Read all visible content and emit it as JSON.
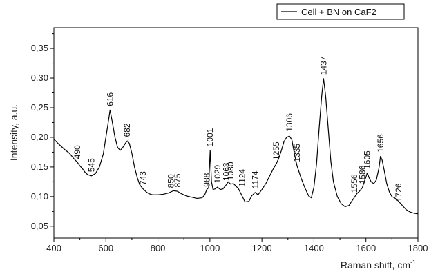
{
  "chart_data": {
    "type": "line",
    "xlabel": "Raman shift, cm",
    "xlabel_superscript": "-1",
    "ylabel": "Intensity, a.u.",
    "xlim": [
      400,
      1800
    ],
    "ylim": [
      0.03,
      0.385
    ],
    "x_ticks": [
      400,
      600,
      800,
      1000,
      1200,
      1400,
      1600,
      1800
    ],
    "x_tick_labels": [
      "400",
      "600",
      "800",
      "1000",
      "1200",
      "1400",
      "1600",
      "1800"
    ],
    "y_ticks": [
      0.05,
      0.1,
      0.15,
      0.2,
      0.25,
      0.3,
      0.35
    ],
    "y_tick_labels": [
      "0,05",
      "0,10",
      "0,15",
      "0,20",
      "0,25",
      "0,30",
      "0,35"
    ],
    "grid": false,
    "legend_position": "top-right",
    "series": [
      {
        "name": "Cell + BN on CaF2",
        "color": "#000000",
        "x": [
          400,
          420,
          440,
          460,
          475,
          490,
          500,
          510,
          520,
          530,
          545,
          560,
          575,
          590,
          600,
          610,
          616,
          625,
          635,
          645,
          655,
          665,
          675,
          682,
          690,
          700,
          710,
          720,
          730,
          743,
          755,
          765,
          780,
          800,
          820,
          840,
          850,
          860,
          875,
          890,
          910,
          930,
          950,
          970,
          980,
          988,
          995,
          1001,
          1006,
          1012,
          1020,
          1029,
          1040,
          1050,
          1063,
          1070,
          1080,
          1090,
          1100,
          1110,
          1124,
          1135,
          1150,
          1160,
          1174,
          1185,
          1200,
          1215,
          1230,
          1245,
          1255,
          1265,
          1275,
          1285,
          1295,
          1306,
          1315,
          1325,
          1335,
          1350,
          1365,
          1380,
          1390,
          1400,
          1410,
          1420,
          1430,
          1437,
          1445,
          1455,
          1465,
          1475,
          1490,
          1505,
          1520,
          1535,
          1545,
          1556,
          1565,
          1575,
          1586,
          1595,
          1600,
          1605,
          1612,
          1620,
          1630,
          1640,
          1650,
          1656,
          1662,
          1670,
          1680,
          1690,
          1700,
          1710,
          1726,
          1740,
          1755,
          1770,
          1785,
          1800
        ],
        "y": [
          0.197,
          0.188,
          0.18,
          0.173,
          0.165,
          0.158,
          0.152,
          0.147,
          0.141,
          0.137,
          0.135,
          0.139,
          0.15,
          0.172,
          0.2,
          0.228,
          0.246,
          0.225,
          0.2,
          0.183,
          0.178,
          0.183,
          0.19,
          0.194,
          0.19,
          0.173,
          0.15,
          0.133,
          0.12,
          0.113,
          0.108,
          0.105,
          0.103,
          0.103,
          0.104,
          0.106,
          0.108,
          0.11,
          0.109,
          0.105,
          0.101,
          0.099,
          0.097,
          0.098,
          0.103,
          0.112,
          0.115,
          0.178,
          0.125,
          0.112,
          0.113,
          0.116,
          0.112,
          0.113,
          0.12,
          0.125,
          0.121,
          0.122,
          0.118,
          0.113,
          0.101,
          0.091,
          0.092,
          0.101,
          0.107,
          0.103,
          0.112,
          0.122,
          0.135,
          0.148,
          0.155,
          0.165,
          0.178,
          0.193,
          0.2,
          0.202,
          0.196,
          0.172,
          0.152,
          0.132,
          0.115,
          0.101,
          0.098,
          0.116,
          0.155,
          0.215,
          0.27,
          0.299,
          0.27,
          0.215,
          0.16,
          0.125,
          0.1,
          0.088,
          0.083,
          0.085,
          0.092,
          0.099,
          0.105,
          0.109,
          0.115,
          0.127,
          0.133,
          0.14,
          0.132,
          0.125,
          0.122,
          0.128,
          0.148,
          0.168,
          0.162,
          0.145,
          0.122,
          0.108,
          0.1,
          0.098,
          0.092,
          0.085,
          0.078,
          0.074,
          0.072,
          0.071
        ]
      }
    ],
    "peak_labels": [
      {
        "text": "490",
        "x": 490,
        "y": 0.16
      },
      {
        "text": "545",
        "x": 545,
        "y": 0.138
      },
      {
        "text": "616",
        "x": 616,
        "y": 0.249
      },
      {
        "text": "682",
        "x": 682,
        "y": 0.197
      },
      {
        "text": "743",
        "x": 743,
        "y": 0.116
      },
      {
        "text": "850",
        "x": 850,
        "y": 0.111
      },
      {
        "text": "875",
        "x": 875,
        "y": 0.112
      },
      {
        "text": "988",
        "x": 988,
        "y": 0.113
      },
      {
        "text": "1001",
        "x": 1001,
        "y": 0.181
      },
      {
        "text": "1029",
        "x": 1029,
        "y": 0.119
      },
      {
        "text": "1063",
        "x": 1063,
        "y": 0.123
      },
      {
        "text": "1080",
        "x": 1080,
        "y": 0.124
      },
      {
        "text": "1124",
        "x": 1124,
        "y": 0.113
      },
      {
        "text": "1174",
        "x": 1174,
        "y": 0.11
      },
      {
        "text": "1255",
        "x": 1255,
        "y": 0.158
      },
      {
        "text": "1306",
        "x": 1306,
        "y": 0.206
      },
      {
        "text": "1335",
        "x": 1335,
        "y": 0.155
      },
      {
        "text": "1437",
        "x": 1437,
        "y": 0.302
      },
      {
        "text": "1556",
        "x": 1556,
        "y": 0.103
      },
      {
        "text": "1586",
        "x": 1586,
        "y": 0.118
      },
      {
        "text": "1605",
        "x": 1605,
        "y": 0.143
      },
      {
        "text": "1656",
        "x": 1656,
        "y": 0.171
      },
      {
        "text": "1726",
        "x": 1726,
        "y": 0.088
      }
    ]
  }
}
